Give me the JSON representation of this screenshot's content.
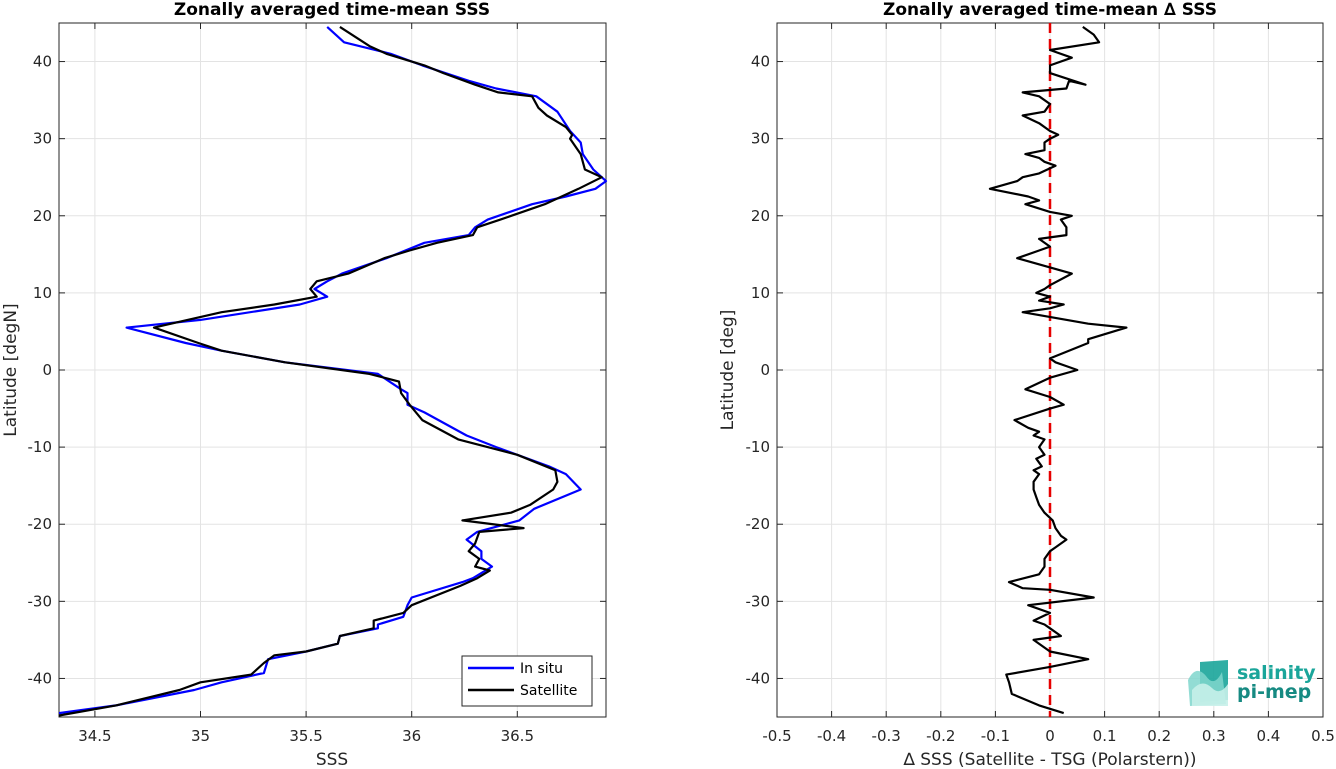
{
  "chart_data": [
    {
      "type": "line",
      "title": "Zonally averaged time-mean SSS",
      "xlabel": "SSS",
      "ylabel": "Latitude [degN]",
      "xlim": [
        34.33,
        36.92
      ],
      "ylim": [
        -45,
        45
      ],
      "xticks": [
        "34.5",
        "35",
        "35.5",
        "36",
        "36.5"
      ],
      "xtick_values": [
        34.5,
        35,
        35.5,
        36,
        36.5
      ],
      "yticks": [
        "-40",
        "-30",
        "-20",
        "-10",
        "0",
        "10",
        "20",
        "30",
        "40"
      ],
      "ytick_values": [
        -40,
        -30,
        -20,
        -10,
        0,
        10,
        20,
        30,
        40
      ],
      "grid": true,
      "legend_position": "bottom-right",
      "series": [
        {
          "name": "In situ",
          "color": "#0000ff",
          "points": [
            [
              34.33,
              -44.5
            ],
            [
              34.6,
              -43.5
            ],
            [
              34.97,
              -41.5
            ],
            [
              35.1,
              -40.5
            ],
            [
              35.3,
              -39.3
            ],
            [
              35.32,
              -37.5
            ],
            [
              35.5,
              -36.5
            ],
            [
              35.65,
              -35.5
            ],
            [
              35.66,
              -34.5
            ],
            [
              35.84,
              -33.5
            ],
            [
              35.84,
              -33
            ],
            [
              35.96,
              -32
            ],
            [
              35.98,
              -30.5
            ],
            [
              36,
              -29.5
            ],
            [
              36.24,
              -27.5
            ],
            [
              36.29,
              -27
            ],
            [
              36.38,
              -25.5
            ],
            [
              36.33,
              -24.5
            ],
            [
              36.33,
              -23.5
            ],
            [
              36.26,
              -22
            ],
            [
              36.31,
              -21
            ],
            [
              36.51,
              -19.5
            ],
            [
              36.58,
              -18
            ],
            [
              36.8,
              -15.5
            ],
            [
              36.73,
              -13.5
            ],
            [
              36.65,
              -12.5
            ],
            [
              36.4,
              -10
            ],
            [
              36.26,
              -8.5
            ],
            [
              36.06,
              -5.5
            ],
            [
              35.98,
              -4.5
            ],
            [
              35.98,
              -3
            ],
            [
              35.95,
              -2.5
            ],
            [
              35.84,
              -0.5
            ],
            [
              35.4,
              1
            ],
            [
              35.1,
              2.5
            ],
            [
              34.93,
              3.5
            ],
            [
              34.65,
              5.5
            ],
            [
              35.0,
              6.5
            ],
            [
              35.47,
              8.5
            ],
            [
              35.6,
              9.5
            ],
            [
              35.54,
              10.5
            ],
            [
              35.6,
              11.5
            ],
            [
              35.67,
              12.5
            ],
            [
              35.88,
              14.5
            ],
            [
              36.06,
              16.5
            ],
            [
              36.27,
              17.5
            ],
            [
              36.3,
              18.5
            ],
            [
              36.36,
              19.5
            ],
            [
              36.57,
              21.5
            ],
            [
              36.73,
              22.5
            ],
            [
              36.87,
              23.5
            ],
            [
              36.92,
              24.5
            ],
            [
              36.86,
              26
            ],
            [
              36.81,
              28
            ],
            [
              36.8,
              29.5
            ],
            [
              36.75,
              31
            ],
            [
              36.69,
              33.5
            ],
            [
              36.59,
              35.5
            ],
            [
              36.4,
              36.5
            ],
            [
              36.27,
              37.5
            ],
            [
              36.05,
              39.5
            ],
            [
              35.9,
              41
            ],
            [
              35.68,
              42.5
            ],
            [
              35.6,
              44.5
            ]
          ]
        },
        {
          "name": "Satellite",
          "color": "#000000",
          "points": [
            [
              34.33,
              -44.8
            ],
            [
              34.6,
              -43.5
            ],
            [
              34.9,
              -41.5
            ],
            [
              35.0,
              -40.5
            ],
            [
              35.24,
              -39.5
            ],
            [
              35.3,
              -38
            ],
            [
              35.35,
              -37
            ],
            [
              35.5,
              -36.5
            ],
            [
              35.65,
              -35.5
            ],
            [
              35.66,
              -34.5
            ],
            [
              35.82,
              -33.5
            ],
            [
              35.82,
              -32.5
            ],
            [
              35.96,
              -31.5
            ],
            [
              36.0,
              -30.5
            ],
            [
              36.23,
              -28
            ],
            [
              36.31,
              -27
            ],
            [
              36.37,
              -26
            ],
            [
              36.3,
              -25.5
            ],
            [
              36.32,
              -24.5
            ],
            [
              36.27,
              -23.5
            ],
            [
              36.3,
              -22.5
            ],
            [
              36.32,
              -21
            ],
            [
              36.53,
              -20.5
            ],
            [
              36.24,
              -19.5
            ],
            [
              36.47,
              -18.5
            ],
            [
              36.56,
              -17.5
            ],
            [
              36.67,
              -15.5
            ],
            [
              36.69,
              -14.5
            ],
            [
              36.68,
              -13
            ],
            [
              36.5,
              -11
            ],
            [
              36.22,
              -9
            ],
            [
              36.05,
              -6.5
            ],
            [
              35.99,
              -4.5
            ],
            [
              35.95,
              -3
            ],
            [
              35.94,
              -1.5
            ],
            [
              35.8,
              -0.5
            ],
            [
              35.4,
              1
            ],
            [
              35.1,
              2.5
            ],
            [
              34.99,
              3.5
            ],
            [
              34.78,
              5.5
            ],
            [
              35.1,
              7.5
            ],
            [
              35.35,
              8.5
            ],
            [
              35.55,
              9.5
            ],
            [
              35.52,
              10.5
            ],
            [
              35.55,
              11.5
            ],
            [
              35.7,
              12.5
            ],
            [
              35.87,
              14.5
            ],
            [
              35.99,
              15.5
            ],
            [
              36.12,
              16.5
            ],
            [
              36.29,
              17.5
            ],
            [
              36.31,
              18.5
            ],
            [
              36.42,
              19.5
            ],
            [
              36.63,
              21.5
            ],
            [
              36.79,
              23.5
            ],
            [
              36.9,
              25
            ],
            [
              36.82,
              26
            ],
            [
              36.8,
              28
            ],
            [
              36.75,
              30
            ],
            [
              36.76,
              30.5
            ],
            [
              36.73,
              31.5
            ],
            [
              36.64,
              33
            ],
            [
              36.6,
              34
            ],
            [
              36.57,
              35.5
            ],
            [
              36.41,
              36
            ],
            [
              36.3,
              37
            ],
            [
              36.15,
              38.5
            ],
            [
              36.06,
              39.5
            ],
            [
              35.88,
              41
            ],
            [
              35.8,
              42
            ],
            [
              35.66,
              44.5
            ]
          ]
        }
      ]
    },
    {
      "type": "line",
      "title": "Zonally averaged time-mean ∆ SSS",
      "xlabel": "∆ SSS (Satellite - TSG (Polarstern))",
      "ylabel": "Latitude [deg]",
      "xlim": [
        -0.5,
        0.5
      ],
      "ylim": [
        -45,
        45
      ],
      "xticks": [
        "-0.5",
        "-0.4",
        "-0.3",
        "-0.2",
        "-0.1",
        "0",
        "0.1",
        "0.2",
        "0.3",
        "0.4",
        "0.5"
      ],
      "xtick_values": [
        -0.5,
        -0.4,
        -0.3,
        -0.2,
        -0.1,
        0,
        0.1,
        0.2,
        0.3,
        0.4,
        0.5
      ],
      "yticks": [
        "-40",
        "-30",
        "-20",
        "-10",
        "0",
        "10",
        "20",
        "30",
        "40"
      ],
      "ytick_values": [
        -40,
        -30,
        -20,
        -10,
        0,
        10,
        20,
        30,
        40
      ],
      "grid": true,
      "reference_line": {
        "x": 0,
        "color": "#e60000",
        "style": "dashed"
      },
      "series": [
        {
          "name": "",
          "color": "#000000",
          "points": [
            [
              0.025,
              -44.5
            ],
            [
              -0.02,
              -43.5
            ],
            [
              -0.07,
              -42
            ],
            [
              -0.075,
              -40.5
            ],
            [
              -0.08,
              -39.5
            ],
            [
              0.0,
              -38.5
            ],
            [
              0.07,
              -37.5
            ],
            [
              0.0,
              -36.5
            ],
            [
              -0.03,
              -35
            ],
            [
              0.02,
              -34.5
            ],
            [
              0.0,
              -33.5
            ],
            [
              -0.01,
              -33
            ],
            [
              -0.03,
              -32.5
            ],
            [
              0.0,
              -31.5
            ],
            [
              -0.04,
              -30.5
            ],
            [
              0.08,
              -29.5
            ],
            [
              0.0,
              -28.5
            ],
            [
              -0.05,
              -28.3
            ],
            [
              -0.075,
              -27.5
            ],
            [
              -0.02,
              -26.5
            ],
            [
              -0.01,
              -25.5
            ],
            [
              -0.01,
              -24.5
            ],
            [
              0.0,
              -23.5
            ],
            [
              0.01,
              -23
            ],
            [
              0.03,
              -22
            ],
            [
              0.02,
              -21.5
            ],
            [
              0.01,
              -20.5
            ],
            [
              0.005,
              -19.5
            ],
            [
              -0.01,
              -18.5
            ],
            [
              -0.02,
              -17.5
            ],
            [
              -0.025,
              -16.5
            ],
            [
              -0.03,
              -15.5
            ],
            [
              -0.03,
              -14.5
            ],
            [
              -0.02,
              -13.5
            ],
            [
              -0.03,
              -13
            ],
            [
              -0.015,
              -12.5
            ],
            [
              -0.025,
              -11.5
            ],
            [
              -0.01,
              -11
            ],
            [
              -0.02,
              -10
            ],
            [
              -0.015,
              -9.5
            ],
            [
              -0.01,
              -9
            ],
            [
              -0.03,
              -8.5
            ],
            [
              -0.02,
              -8
            ],
            [
              -0.04,
              -7.5
            ],
            [
              -0.065,
              -6.5
            ],
            [
              0.0,
              -5
            ],
            [
              0.025,
              -4.5
            ],
            [
              0.0,
              -3.5
            ],
            [
              -0.045,
              -2.5
            ],
            [
              0.0,
              -1
            ],
            [
              0.05,
              0
            ],
            [
              0.03,
              0.5
            ],
            [
              0.01,
              1
            ],
            [
              0.0,
              1.5
            ],
            [
              0.07,
              3.5
            ],
            [
              0.07,
              4
            ],
            [
              0.14,
              5.5
            ],
            [
              0.07,
              6
            ],
            [
              -0.05,
              7.5
            ],
            [
              0.0,
              8
            ],
            [
              0.025,
              8.5
            ],
            [
              -0.02,
              9
            ],
            [
              0.0,
              9.5
            ],
            [
              -0.025,
              10
            ],
            [
              -0.01,
              10.5
            ],
            [
              0.0,
              11
            ],
            [
              0.04,
              12.5
            ],
            [
              -0.06,
              14.5
            ],
            [
              -0.02,
              15.5
            ],
            [
              0.0,
              16
            ],
            [
              -0.02,
              17
            ],
            [
              0.03,
              17.5
            ],
            [
              0.03,
              18.5
            ],
            [
              0.02,
              19.5
            ],
            [
              0.04,
              20
            ],
            [
              0.0,
              20.5
            ],
            [
              -0.045,
              21.5
            ],
            [
              -0.02,
              22
            ],
            [
              -0.04,
              22.5
            ],
            [
              -0.11,
              23.5
            ],
            [
              -0.06,
              24.5
            ],
            [
              -0.05,
              25
            ],
            [
              -0.02,
              25.5
            ],
            [
              0.01,
              26.5
            ],
            [
              -0.01,
              27
            ],
            [
              -0.02,
              27.5
            ],
            [
              -0.045,
              28
            ],
            [
              -0.01,
              28.5
            ],
            [
              -0.01,
              29.5
            ],
            [
              0.0,
              30
            ],
            [
              0.015,
              30.5
            ],
            [
              0.0,
              31
            ],
            [
              -0.02,
              32
            ],
            [
              -0.05,
              33
            ],
            [
              -0.01,
              33.5
            ],
            [
              0.0,
              34.5
            ],
            [
              -0.02,
              35.5
            ],
            [
              -0.05,
              36
            ],
            [
              0.03,
              36.5
            ],
            [
              0.035,
              37.5
            ],
            [
              0.065,
              37
            ],
            [
              0.0,
              38.5
            ],
            [
              0.0,
              39.5
            ],
            [
              0.04,
              40.5
            ],
            [
              0.0,
              41.5
            ],
            [
              0.09,
              42.5
            ],
            [
              0.08,
              43.5
            ],
            [
              0.06,
              44.5
            ]
          ]
        }
      ]
    }
  ],
  "legend": {
    "items": [
      {
        "label": "In situ",
        "color": "#0000ff"
      },
      {
        "label": "Satellite",
        "color": "#000000"
      }
    ]
  },
  "logo": {
    "line1": "salinity",
    "line2": "pi-mep"
  }
}
